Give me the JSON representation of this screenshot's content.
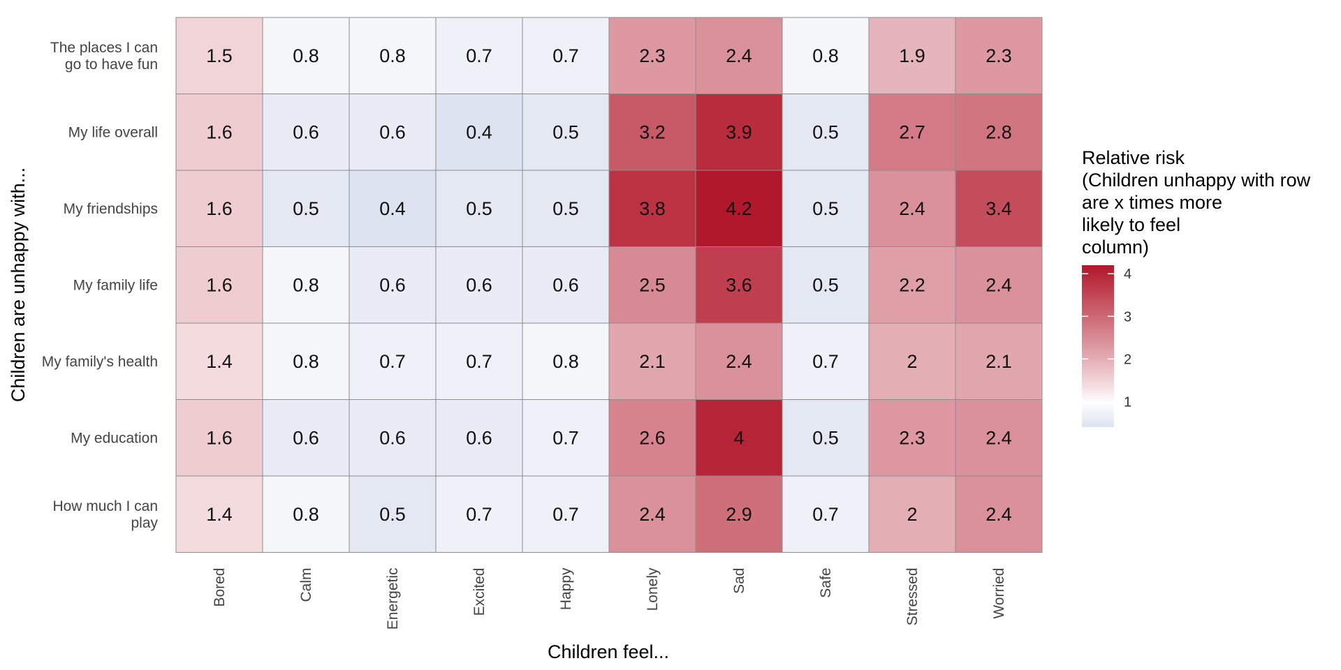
{
  "chart_data": {
    "type": "heatmap",
    "xlabel": "Children feel...",
    "ylabel": "Children are unhappy with...",
    "columns": [
      "Bored",
      "Calm",
      "Energetic",
      "Excited",
      "Happy",
      "Lonely",
      "Sad",
      "Safe",
      "Stressed",
      "Worried"
    ],
    "rows": [
      [
        "The places I can",
        "go to have fun"
      ],
      [
        "My life overall"
      ],
      [
        "My friendships"
      ],
      [
        "My family life"
      ],
      [
        "My family's health"
      ],
      [
        "My education"
      ],
      [
        "How much I can",
        "play"
      ]
    ],
    "values": [
      [
        1.5,
        0.8,
        0.8,
        0.7,
        0.7,
        2.3,
        2.4,
        0.8,
        1.9,
        2.3
      ],
      [
        1.6,
        0.6,
        0.6,
        0.4,
        0.5,
        3.2,
        3.9,
        0.5,
        2.7,
        2.8
      ],
      [
        1.6,
        0.5,
        0.4,
        0.5,
        0.5,
        3.8,
        4.2,
        0.5,
        2.4,
        3.4
      ],
      [
        1.6,
        0.8,
        0.6,
        0.6,
        0.6,
        2.5,
        3.6,
        0.5,
        2.2,
        2.4
      ],
      [
        1.4,
        0.8,
        0.7,
        0.7,
        0.8,
        2.1,
        2.4,
        0.7,
        2,
        2.1
      ],
      [
        1.6,
        0.6,
        0.6,
        0.6,
        0.7,
        2.6,
        4,
        0.5,
        2.3,
        2.4
      ],
      [
        1.4,
        0.8,
        0.5,
        0.7,
        0.7,
        2.4,
        2.9,
        0.7,
        2,
        2.4
      ]
    ],
    "legend": {
      "title_lines": [
        "Relative risk",
        "(Children unhappy with row",
        "are x times more",
        "likely to feel",
        "column)"
      ],
      "ticks": [
        1,
        2,
        3,
        4
      ],
      "range": [
        0.4,
        4.2
      ],
      "placement": "right"
    },
    "colors": {
      "low": "#dee3f1",
      "mid": "#ffffff",
      "high": "#b2182b",
      "midpoint": 1,
      "cell_border": "#8c8c8c"
    }
  }
}
